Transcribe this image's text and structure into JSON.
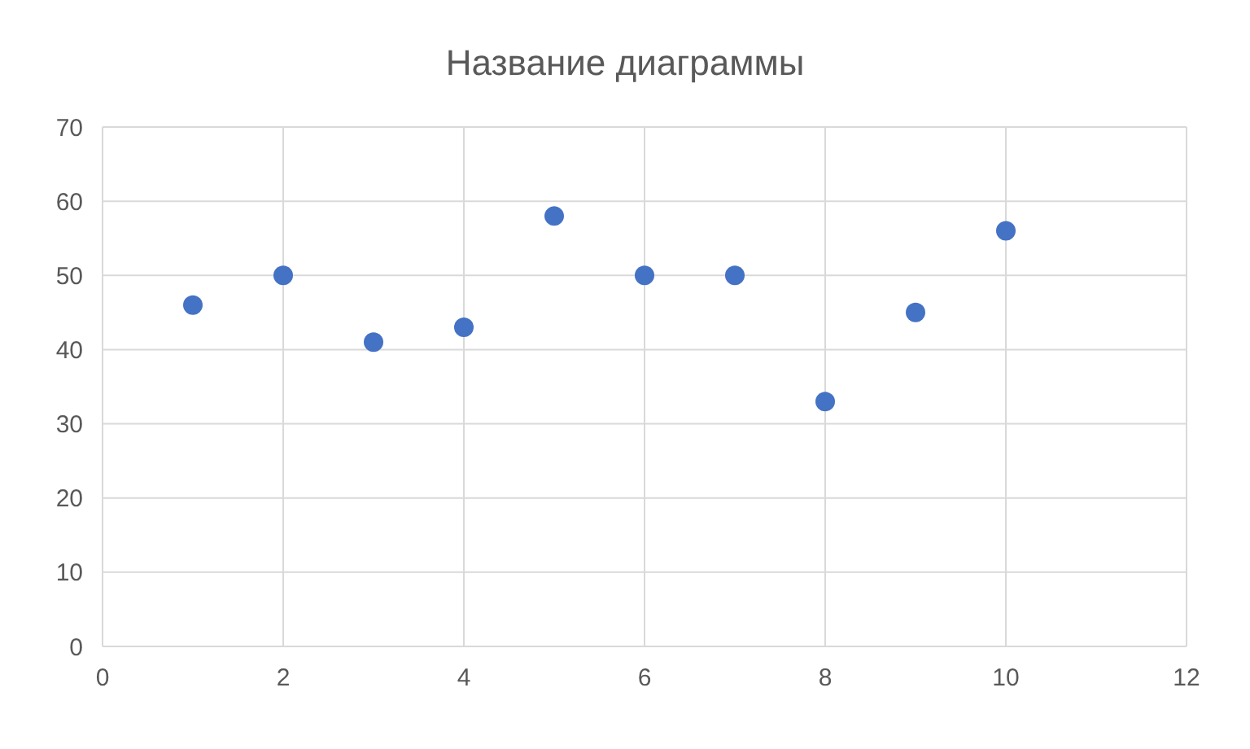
{
  "chart_data": {
    "type": "scatter",
    "title": "Название диаграммы",
    "x": [
      1,
      2,
      3,
      4,
      5,
      6,
      7,
      8,
      9,
      10
    ],
    "series": [
      {
        "color": "#4472c4",
        "values": [
          46,
          50,
          41,
          43,
          58,
          50,
          50,
          33,
          45,
          56
        ]
      }
    ],
    "xlim": [
      0,
      12
    ],
    "xticks": [
      0,
      2,
      4,
      6,
      8,
      10,
      12
    ],
    "ylim": [
      0,
      70
    ],
    "yticks": [
      0,
      10,
      20,
      30,
      40,
      50,
      60,
      70
    ],
    "grid": true,
    "marker": "circle"
  }
}
